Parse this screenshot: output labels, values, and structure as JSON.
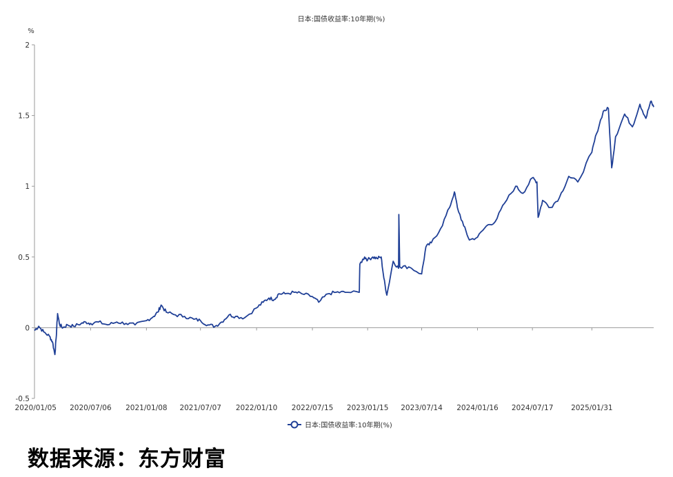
{
  "chart_data": {
    "type": "line",
    "title": "日本:国债收益率:10年期(%)",
    "ylabel": "%",
    "xlabel": "",
    "ylim": [
      -0.5,
      2
    ],
    "yticks": [
      "-0.5",
      "0",
      "0.5",
      "1",
      "1.5",
      "2"
    ],
    "xticks": [
      "2020/01/05",
      "2020/07/06",
      "2021/01/08",
      "2021/07/07",
      "2022/01/10",
      "2022/07/15",
      "2023/01/15",
      "2023/07/14",
      "2024/01/16",
      "2024/07/17",
      "2025/01/31"
    ],
    "grid": false,
    "legend_position": "bottom-center",
    "series": [
      {
        "name": "日本:国债收益率:10年期(%)",
        "color": "#1f3f96",
        "x": [
          "2020/01/01",
          "2020/01/15",
          "2020/02/01",
          "2020/02/20",
          "2020/03/01",
          "2020/03/09",
          "2020/03/13",
          "2020/03/18",
          "2020/03/25",
          "2020/04/05",
          "2020/04/20",
          "2020/05/10",
          "2020/06/05",
          "2020/06/20",
          "2020/07/06",
          "2020/08/01",
          "2020/09/01",
          "2020/10/01",
          "2020/11/01",
          "2020/12/01",
          "2021/01/08",
          "2021/02/01",
          "2021/02/15",
          "2021/02/26",
          "2021/03/15",
          "2021/04/15",
          "2021/05/15",
          "2021/06/15",
          "2021/07/07",
          "2021/08/01",
          "2021/08/25",
          "2021/09/15",
          "2021/10/10",
          "2021/11/01",
          "2021/12/01",
          "2022/01/10",
          "2022/02/01",
          "2022/02/20",
          "2022/03/10",
          "2022/03/25",
          "2022/04/15",
          "2022/05/15",
          "2022/06/10",
          "2022/07/15",
          "2022/08/05",
          "2022/09/05",
          "2022/10/01",
          "2022/11/01",
          "2022/12/18",
          "2022/12/20",
          "2023/01/05",
          "2023/01/15",
          "2023/02/01",
          "2023/02/15",
          "2023/03/01",
          "2023/03/10",
          "2023/03/20",
          "2023/04/10",
          "2023/04/28",
          "2023/04/29",
          "2023/05/02",
          "2023/06/01",
          "2023/07/14",
          "2023/07/28",
          "2023/08/15",
          "2023/09/15",
          "2023/10/15",
          "2023/10/31",
          "2023/11/10",
          "2023/12/01",
          "2023/12/20",
          "2024/01/16",
          "2024/02/15",
          "2024/03/15",
          "2024/04/15",
          "2024/05/22",
          "2024/06/15",
          "2024/07/17",
          "2024/08/01",
          "2024/08/05",
          "2024/08/20",
          "2024/09/15",
          "2024/10/15",
          "2024/11/15",
          "2024/12/15",
          "2025/01/31",
          "2025/02/15",
          "2025/03/10",
          "2025/03/27",
          "2025/04/07",
          "2025/04/20",
          "2025/05/20",
          "2025/06/15",
          "2025/07/10",
          "2025/07/30",
          "2025/08/15",
          "2025/08/25"
        ],
        "values": [
          -0.02,
          0.01,
          -0.03,
          -0.06,
          -0.1,
          -0.19,
          -0.08,
          0.1,
          0.02,
          0.0,
          0.02,
          0.01,
          0.03,
          0.04,
          0.03,
          0.04,
          0.02,
          0.04,
          0.03,
          0.02,
          0.05,
          0.08,
          0.11,
          0.16,
          0.11,
          0.09,
          0.08,
          0.06,
          0.05,
          0.02,
          0.01,
          0.04,
          0.09,
          0.08,
          0.07,
          0.14,
          0.18,
          0.21,
          0.2,
          0.24,
          0.24,
          0.25,
          0.24,
          0.22,
          0.18,
          0.24,
          0.25,
          0.25,
          0.25,
          0.45,
          0.5,
          0.48,
          0.5,
          0.49,
          0.5,
          0.35,
          0.23,
          0.47,
          0.42,
          0.8,
          0.43,
          0.43,
          0.38,
          0.57,
          0.6,
          0.7,
          0.85,
          0.96,
          0.85,
          0.72,
          0.62,
          0.64,
          0.72,
          0.75,
          0.88,
          1.0,
          0.95,
          1.06,
          1.03,
          0.78,
          0.9,
          0.85,
          0.92,
          1.07,
          1.03,
          1.24,
          1.37,
          1.53,
          1.55,
          1.13,
          1.35,
          1.51,
          1.42,
          1.58,
          1.48,
          1.6,
          1.56
        ]
      }
    ]
  },
  "source": "数据来源：东方财富"
}
